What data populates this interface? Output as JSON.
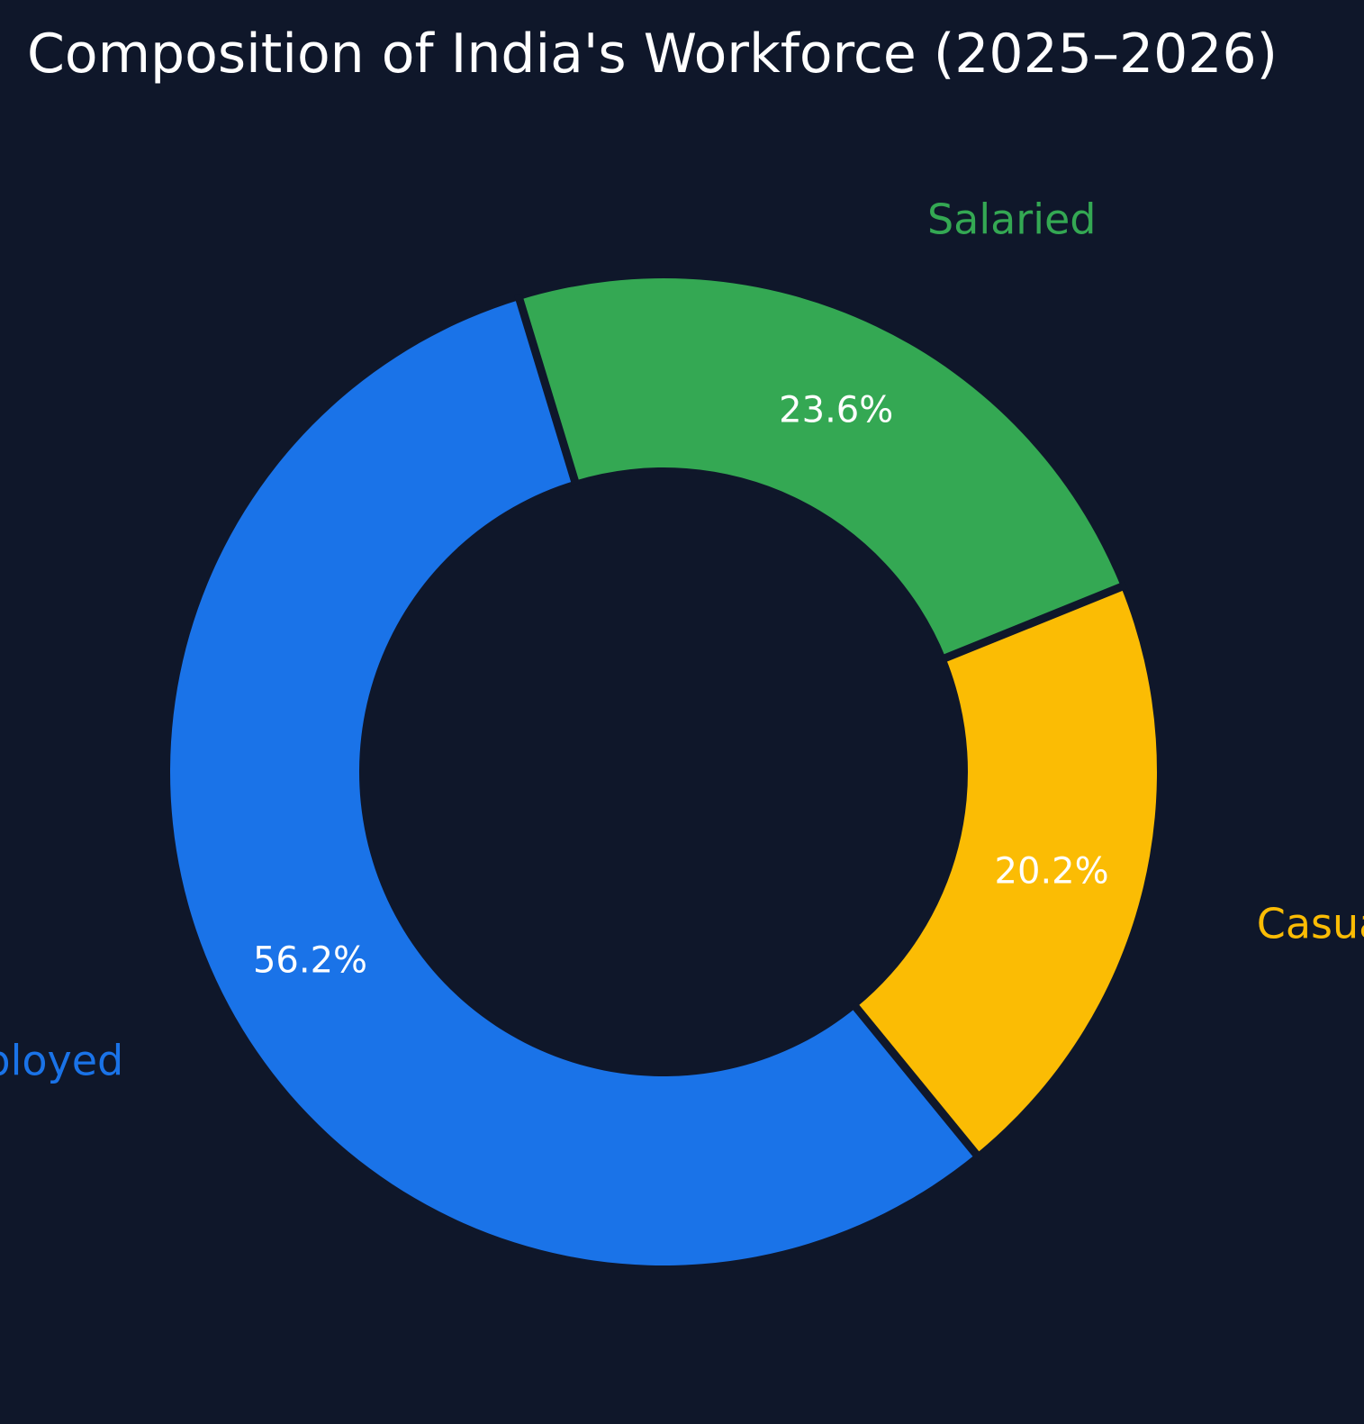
{
  "chart_data": {
    "type": "pie",
    "title": "Composition of India's Workforce (2025–2026)",
    "donut": true,
    "legend": "none",
    "slices": [
      {
        "label": "Salaried",
        "value": 23.6,
        "display": "23.6%",
        "color": "#34a853"
      },
      {
        "label": "Self Employed",
        "value": 56.2,
        "display": "56.2%",
        "color": "#1a73e8"
      },
      {
        "label": "Casual Labour",
        "value": 20.2,
        "display": "20.2%",
        "color": "#fbbc04"
      }
    ]
  },
  "colors": {
    "background": "#0f172a",
    "title": "#ffffff",
    "value_labels": "#ffffff"
  }
}
